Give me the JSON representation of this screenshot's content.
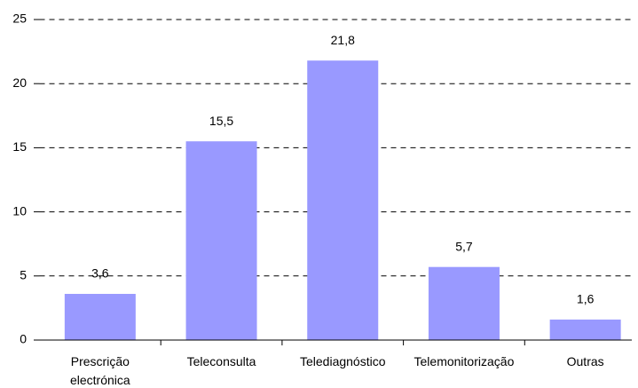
{
  "chart_data": {
    "type": "bar",
    "categories": [
      "Prescrição electrónica",
      "Teleconsulta",
      "Telediagnóstico",
      "Telemonitorização",
      "Outras"
    ],
    "values": [
      3.6,
      15.5,
      21.8,
      5.7,
      1.6
    ],
    "value_labels": [
      "3,6",
      "15,5",
      "21,8",
      "5,7",
      "1,6"
    ],
    "color": "#9999ff",
    "ylim": [
      0,
      25
    ],
    "yticks": [
      0,
      5,
      10,
      15,
      20,
      25
    ],
    "grid": true
  }
}
